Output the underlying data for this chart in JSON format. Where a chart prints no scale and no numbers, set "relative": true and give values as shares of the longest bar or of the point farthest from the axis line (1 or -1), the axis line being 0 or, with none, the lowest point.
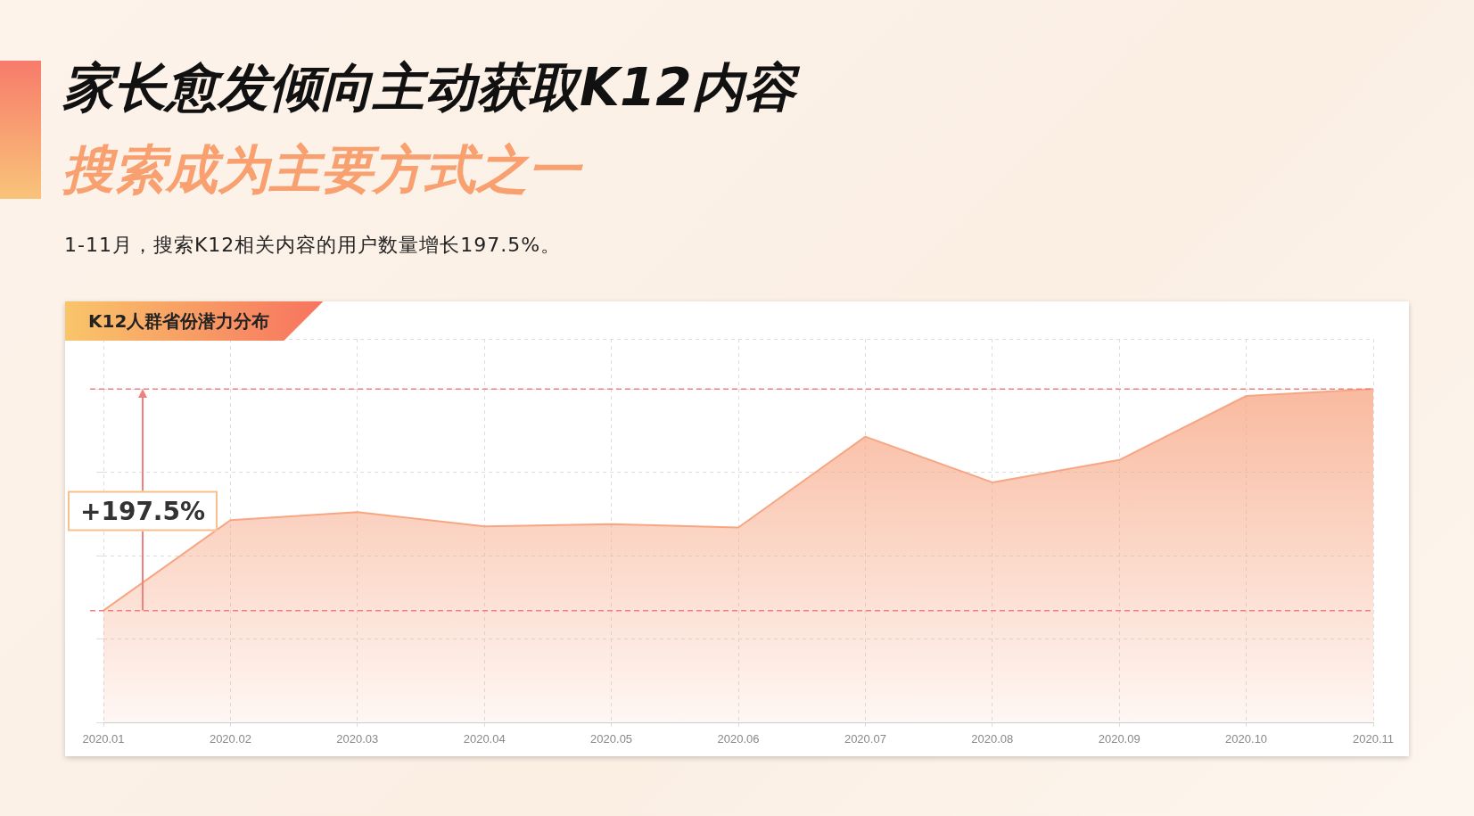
{
  "chart_data": {
    "type": "area",
    "title": "家长愈发倾向主动获取K12内容",
    "subtitle": "搜索成为主要方式之一",
    "annotations": [
      "1-11月，搜索K12相关内容的用户数量增长197.5%。",
      "K12人群省份潜力分布",
      "+197.5%"
    ],
    "categories": [
      "2020.01",
      "2020.02",
      "2020.03",
      "2020.04",
      "2020.05",
      "2020.06",
      "2020.07",
      "2020.08",
      "2020.09",
      "2020.10",
      "2020.11"
    ],
    "series": [
      {
        "color": "#f7a684",
        "values": [
          0.336,
          0.607,
          0.631,
          0.588,
          0.595,
          0.585,
          0.857,
          0.72,
          0.787,
          0.979,
          1
        ]
      }
    ],
    "relative": true,
    "ref_lines": [
      {
        "axis": "y",
        "value": 0.336,
        "color": "#f08080",
        "line_style": "dashed"
      },
      {
        "axis": "y",
        "value": 1,
        "color": "#f08080",
        "line_style": "dashed"
      }
    ],
    "grid": true,
    "legend": false,
    "marker": "none",
    "line_style": "solid"
  }
}
